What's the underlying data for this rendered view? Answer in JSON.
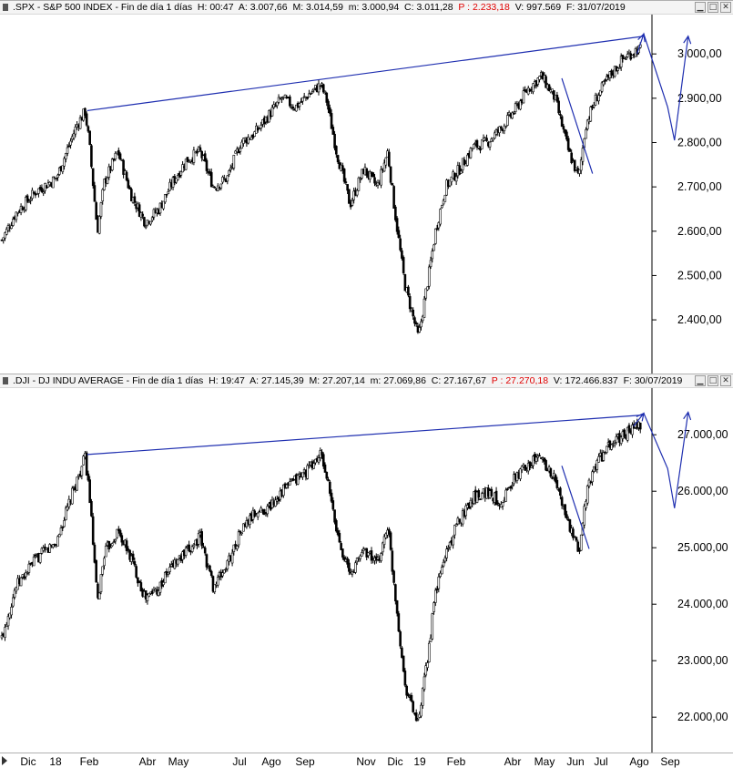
{
  "panes": [
    {
      "id": "spx",
      "header": {
        "symbol": ".SPX - S&P 500 INDEX - Fin de día 1 días",
        "h": "H: 00:47",
        "a": "A: 3.007,66",
        "m_high": "M: 3.014,59",
        "m_low": "m: 3.000,94",
        "c": "C: 3.011,28",
        "p": "P : 2.233,18",
        "v": "V: 997.569",
        "f": "F: 31/07/2019"
      },
      "colors": {
        "candles": "#000000",
        "trendlines": "#1f2fb0",
        "p_value": "#e00000"
      }
    },
    {
      "id": "dji",
      "header": {
        "symbol": ".DJI - DJ INDU AVERAGE - Fin de día 1 días",
        "h": "H: 19:47",
        "a": "A: 27.145,39",
        "m_high": "M: 27.207,14",
        "m_low": "m: 27.069,86",
        "c": "C: 27.167,67",
        "p": "P : 27.270,18",
        "v": "V: 172.466.837",
        "f": "F: 30/07/2019"
      },
      "colors": {
        "candles": "#000000",
        "trendlines": "#1f2fb0",
        "p_value": "#e00000"
      }
    }
  ],
  "x_axis": {
    "labels": [
      "Dic",
      "18",
      "Feb",
      "Abr",
      "May",
      "Jul",
      "Ago",
      "Sep",
      "Nov",
      "Dic",
      "19",
      "Feb",
      "Abr",
      "May",
      "Jun",
      "Jul",
      "Ago",
      "Sep"
    ]
  },
  "chart_data": [
    {
      "type": "candlestick",
      "title": ".SPX - S&P 500 INDEX",
      "ylim": [
        2320,
        3060
      ],
      "yticks": [
        "2.400,00",
        "2.500,00",
        "2.600,00",
        "2.700,00",
        "2.800,00",
        "2.900,00",
        "3.000,00"
      ],
      "ytick_values": [
        2400,
        2500,
        2600,
        2700,
        2800,
        2900,
        3000
      ],
      "x_range": [
        0,
        100
      ],
      "series": [
        {
          "values_key": "approx_close_path",
          "x": [
            0,
            2,
            5,
            8,
            11,
            12.2,
            12.8,
            14,
            15,
            17,
            19,
            21,
            23,
            25,
            27,
            29,
            31,
            33,
            35,
            37,
            39,
            41,
            43,
            45,
            46.7,
            47.5,
            49,
            51,
            53,
            55,
            56.5,
            57.5,
            59,
            61,
            62.5,
            63.5,
            65,
            67,
            69,
            71,
            73,
            75,
            77,
            79,
            81,
            83,
            84.5,
            85.5,
            87,
            89,
            91,
            93
          ],
          "values": [
            2580,
            2640,
            2690,
            2720,
            2840,
            2870,
            2800,
            2600,
            2710,
            2780,
            2680,
            2620,
            2650,
            2710,
            2760,
            2780,
            2700,
            2720,
            2800,
            2820,
            2860,
            2900,
            2880,
            2910,
            2930,
            2900,
            2780,
            2660,
            2740,
            2700,
            2780,
            2650,
            2480,
            2360,
            2500,
            2600,
            2700,
            2740,
            2790,
            2800,
            2830,
            2870,
            2920,
            2950,
            2900,
            2780,
            2720,
            2840,
            2900,
            2950,
            2990,
            3010
          ]
        }
      ],
      "trendlines": [
        {
          "x": [
            12.5,
            94
          ],
          "y": [
            2872,
            3040
          ]
        },
        {
          "x": [
            82,
            86.5
          ],
          "y": [
            2945,
            2730
          ]
        },
        {
          "x": [
            93,
            94,
            97.5,
            98.5,
            100.5
          ],
          "y": [
            3000,
            3045,
            2880,
            2805,
            3040
          ]
        }
      ]
    },
    {
      "type": "candlestick",
      "title": ".DJI - DJ INDU AVERAGE",
      "ylim": [
        21600,
        27600
      ],
      "yticks": [
        "22.000,00",
        "23.000,00",
        "24.000,00",
        "25.000,00",
        "26.000,00",
        "27.000,00"
      ],
      "ytick_values": [
        22000,
        23000,
        24000,
        25000,
        26000,
        27000
      ],
      "x_range": [
        0,
        100
      ],
      "series": [
        {
          "values_key": "approx_close_path",
          "x": [
            0,
            2,
            5,
            8,
            11,
            12.2,
            12.8,
            14,
            15,
            17,
            19,
            21,
            23,
            25,
            27,
            29,
            31,
            33,
            35,
            37,
            39,
            41,
            43,
            45,
            46.7,
            47.5,
            49,
            51,
            53,
            55,
            56.5,
            57.5,
            59,
            61,
            62.5,
            63.5,
            65,
            67,
            69,
            71,
            73,
            75,
            77,
            79,
            81,
            83,
            84.5,
            85.5,
            87,
            89,
            91,
            93
          ],
          "values": [
            23400,
            24300,
            24800,
            25100,
            26200,
            26600,
            26000,
            24000,
            24900,
            25300,
            24800,
            24100,
            24300,
            24700,
            24900,
            25200,
            24300,
            24700,
            25300,
            25600,
            25700,
            26000,
            26200,
            26400,
            26650,
            26300,
            25300,
            24500,
            25000,
            24700,
            25400,
            24300,
            22600,
            21850,
            23200,
            24200,
            24900,
            25500,
            25900,
            26000,
            25800,
            26200,
            26500,
            26600,
            26200,
            25400,
            24900,
            25900,
            26500,
            26800,
            27000,
            27150
          ]
        }
      ],
      "trendlines": [
        {
          "x": [
            12.5,
            94
          ],
          "y": [
            26650,
            27350
          ]
        },
        {
          "x": [
            82,
            86
          ],
          "y": [
            26450,
            24980
          ]
        },
        {
          "x": [
            92.5,
            94,
            97.5,
            98.5,
            100.5
          ],
          "y": [
            27150,
            27380,
            26400,
            25700,
            27400
          ]
        }
      ]
    }
  ]
}
